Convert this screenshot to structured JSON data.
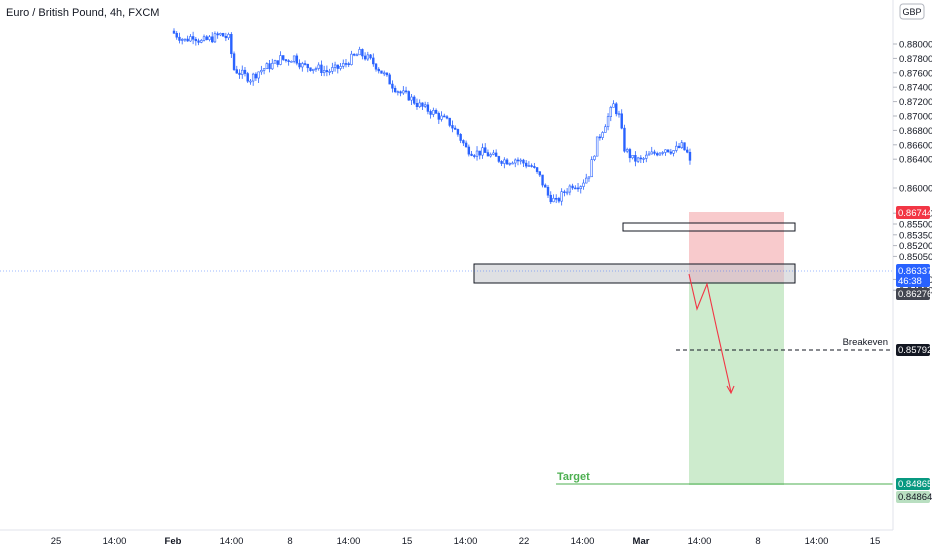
{
  "header": {
    "title": "Euro / British Pound, 4h, FXCM",
    "currency_button": "GBP"
  },
  "colors": {
    "candle_up": "#2962ff",
    "candle_down": "#2962ff",
    "risk_zone": "#ffcdd2",
    "reward_zone": "#c8e6c9",
    "target": "#4caf50",
    "stop_tag": "#f23645",
    "current_tag": "#2962ff",
    "target_tag": "#089981",
    "projection": "#f23645"
  },
  "price_axis": {
    "ticks": [
      "0.88000",
      "0.87800",
      "0.87600",
      "0.87400",
      "0.87200",
      "0.87000",
      "0.86800",
      "0.86600",
      "0.86400",
      "0.86000",
      "0.85650",
      "0.85500",
      "0.85350",
      "0.85200",
      "0.85050",
      "0.84730",
      "0.84580"
    ]
  },
  "time_axis": {
    "labels": [
      "25",
      "14:00",
      "Feb",
      "14:00",
      "8",
      "14:00",
      "15",
      "14:00",
      "22",
      "14:00",
      "Mar",
      "14:00",
      "8",
      "14:00",
      "15"
    ]
  },
  "price_tags": {
    "stop": "0.86744",
    "current_price": "0.86337",
    "countdown": "46:38",
    "entry": "0.86276",
    "breakeven": "0.85792",
    "target": "0.84865",
    "target_alt": "0.84864"
  },
  "annotations": {
    "breakeven_label": "Breakeven",
    "target_label": "Target"
  },
  "chart_data": {
    "type": "candlestick",
    "title": "Euro / British Pound, 4h, FXCM",
    "xlabel": "",
    "ylabel": "",
    "ylim": [
      0.8453,
      0.8823
    ],
    "x_labels": [
      "25",
      "Feb",
      "8",
      "15",
      "22",
      "Mar",
      "8",
      "15"
    ],
    "close_path": [
      [
        0,
        0.8815
      ],
      [
        4,
        0.8805
      ],
      [
        7,
        0.8812
      ],
      [
        10,
        0.8803
      ],
      [
        14,
        0.8808
      ],
      [
        17,
        0.8813
      ],
      [
        20,
        0.8808
      ],
      [
        22,
        0.8765
      ],
      [
        25,
        0.8758
      ],
      [
        28,
        0.8752
      ],
      [
        31,
        0.8762
      ],
      [
        34,
        0.8768
      ],
      [
        37,
        0.8773
      ],
      [
        39,
        0.878
      ],
      [
        41,
        0.8777
      ],
      [
        44,
        0.8782
      ],
      [
        47,
        0.877
      ],
      [
        50,
        0.8768
      ],
      [
        53,
        0.8766
      ],
      [
        56,
        0.8762
      ],
      [
        59,
        0.8765
      ],
      [
        62,
        0.877
      ],
      [
        65,
        0.878
      ],
      [
        68,
        0.8787
      ],
      [
        71,
        0.878
      ],
      [
        74,
        0.877
      ],
      [
        77,
        0.8757
      ],
      [
        80,
        0.8743
      ],
      [
        83,
        0.8732
      ],
      [
        86,
        0.8727
      ],
      [
        89,
        0.8717
      ],
      [
        92,
        0.871
      ],
      [
        95,
        0.8705
      ],
      [
        98,
        0.8697
      ],
      [
        101,
        0.869
      ],
      [
        104,
        0.8675
      ],
      [
        107,
        0.8655
      ],
      [
        110,
        0.8649
      ],
      [
        113,
        0.865
      ],
      [
        116,
        0.8645
      ],
      [
        119,
        0.864
      ],
      [
        122,
        0.8638
      ],
      [
        125,
        0.864
      ],
      [
        128,
        0.8635
      ],
      [
        131,
        0.863
      ],
      [
        134,
        0.8615
      ],
      [
        137,
        0.859
      ],
      [
        140,
        0.858
      ],
      [
        143,
        0.8595
      ],
      [
        146,
        0.8605
      ],
      [
        149,
        0.8605
      ],
      [
        152,
        0.862
      ],
      [
        155,
        0.8665
      ],
      [
        158,
        0.869
      ],
      [
        161,
        0.8715
      ],
      [
        163,
        0.87
      ],
      [
        165,
        0.8655
      ],
      [
        168,
        0.864
      ],
      [
        171,
        0.8638
      ],
      [
        174,
        0.8645
      ],
      [
        177,
        0.865
      ],
      [
        180,
        0.8655
      ],
      [
        183,
        0.8652
      ],
      [
        186,
        0.8658
      ],
      [
        188,
        0.8648
      ],
      [
        189,
        0.8635
      ]
    ],
    "zones": {
      "resistance_box": [
        0.8661,
        0.8669
      ],
      "support_box": [
        0.8627,
        0.864
      ],
      "stop_loss": 0.86744,
      "entry": 0.86276,
      "breakeven": 0.85792,
      "target": 0.84865
    }
  }
}
